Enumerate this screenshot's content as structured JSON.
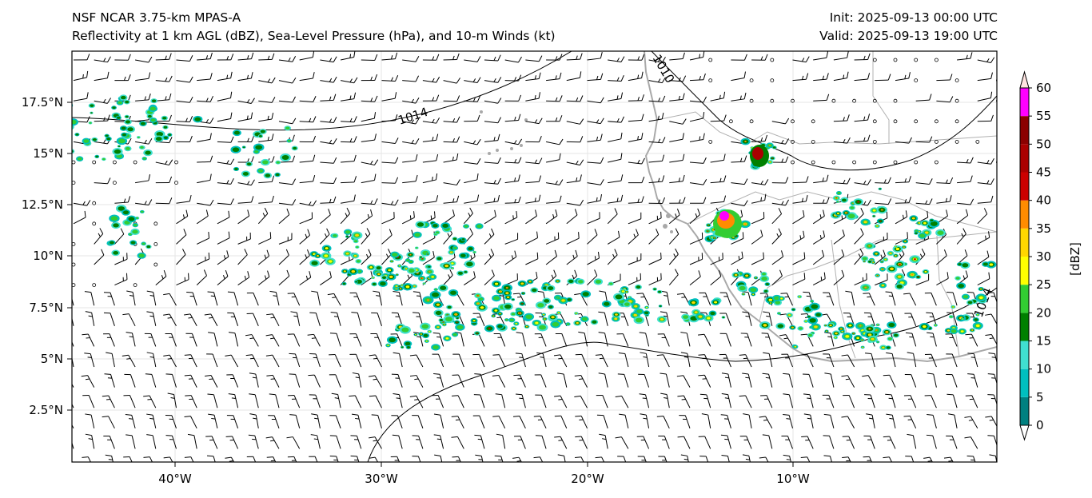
{
  "title_left_1": "NSF NCAR 3.75-km MPAS-A",
  "title_left_2": "Reflectivity at 1 km AGL (dBZ), Sea-Level Pressure (hPa), and 10-m Winds (kt)",
  "title_right_1": "Init: 2025-09-13 00:00 UTC",
  "title_right_2": "Valid: 2025-09-13 19:00 UTC",
  "lat_labels": [
    "17.5°N",
    "15°N",
    "12.5°N",
    "10°N",
    "7.5°N",
    "5°N",
    "2.5°N"
  ],
  "lon_labels": [
    "40°W",
    "30°W",
    "20°W",
    "10°W"
  ],
  "isobar_labels": [
    "1014",
    "1010",
    "1014"
  ],
  "colorbar": {
    "label": "[dBZ]",
    "ticks": [
      "0",
      "5",
      "10",
      "15",
      "20",
      "25",
      "30",
      "35",
      "40",
      "45",
      "50",
      "55",
      "60"
    ],
    "colors": [
      "#008080",
      "#00bfbf",
      "#40e0d0",
      "#008000",
      "#32cd32",
      "#ffff00",
      "#ffd700",
      "#ff8c00",
      "#cc0000",
      "#aa0000",
      "#8b0000",
      "#ff00ff",
      "#ffe4e1"
    ]
  },
  "colors": {
    "coastline": "#a9a9a9",
    "isobar": "#000000",
    "barb": "#000000"
  }
}
